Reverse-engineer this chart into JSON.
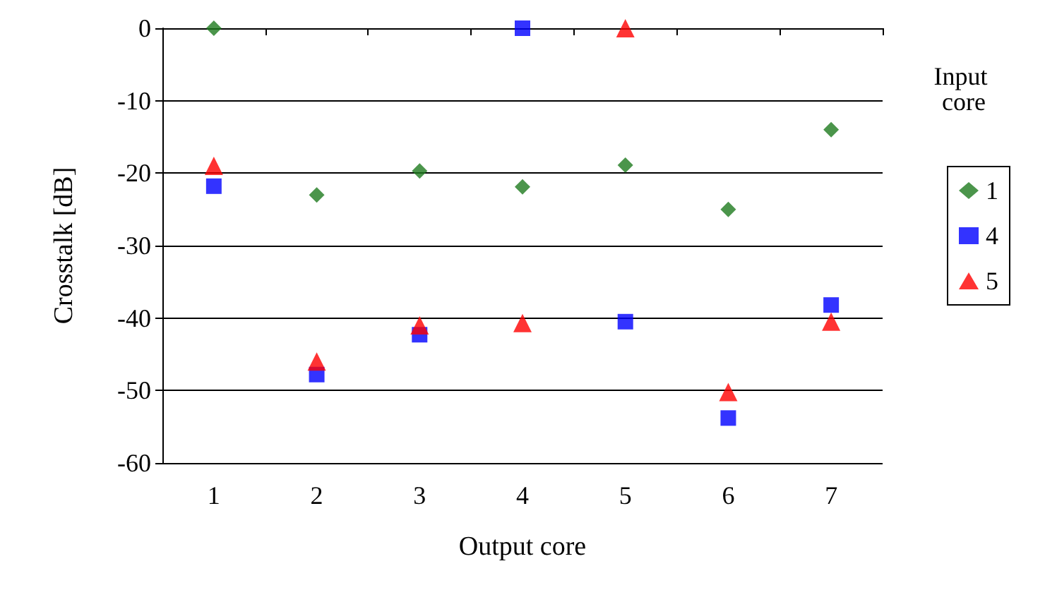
{
  "chart_data": {
    "type": "scatter",
    "xlabel": "Output core",
    "ylabel": "Crosstalk [dB]",
    "legend_title": "Input core",
    "categories": [
      "1",
      "2",
      "3",
      "4",
      "5",
      "6",
      "7"
    ],
    "series": [
      {
        "name": "1",
        "color": "#1e7b1e",
        "marker": "diamond",
        "values": [
          0,
          -23,
          -19.7,
          -21.9,
          -18.9,
          -25,
          -14
        ]
      },
      {
        "name": "4",
        "color": "#0000ff",
        "marker": "square",
        "values": [
          -21.8,
          -47.8,
          -42.3,
          0,
          -40.5,
          -53.8,
          -38.2
        ]
      },
      {
        "name": "5",
        "color": "#ff0000",
        "marker": "triangle",
        "values": [
          -19,
          -46,
          -41,
          -40.7,
          0,
          -50.2,
          -40.5
        ]
      }
    ],
    "ylim": [
      -60,
      0
    ],
    "yticks": [
      -60,
      -50,
      -40,
      -30,
      -20,
      -10,
      0
    ],
    "grid": "y",
    "legend": "right"
  }
}
